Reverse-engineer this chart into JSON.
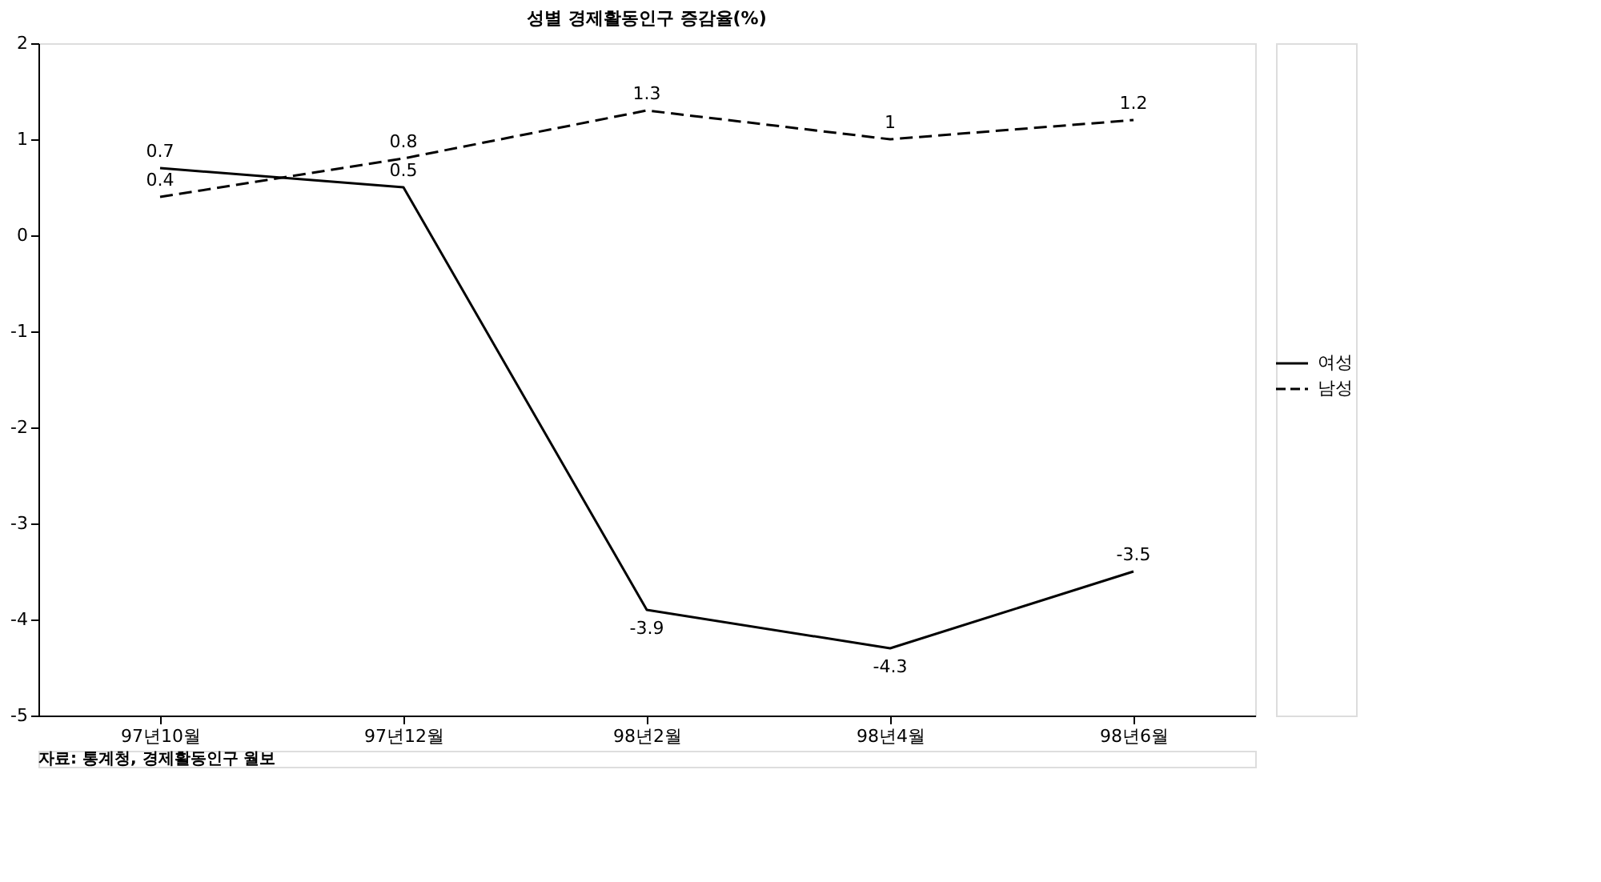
{
  "chart_data": {
    "type": "line",
    "title": "성별 경제활동인구 증감율(%)",
    "categories": [
      "97년10월",
      "97년12월",
      "98년2월",
      "98년4월",
      "98년6월"
    ],
    "series": [
      {
        "name": "여성",
        "color": "#000000",
        "line_style": "solid",
        "values": [
          0.7,
          0.5,
          -3.9,
          -4.3,
          -3.5
        ]
      },
      {
        "name": "남성",
        "color": "#000000",
        "line_style": "dashed",
        "values": [
          0.4,
          0.8,
          1.3,
          1,
          1.2
        ]
      }
    ],
    "ylim": [
      -5,
      2
    ],
    "yticks": [
      -5,
      -4,
      -3,
      -2,
      -1,
      0,
      1,
      2
    ],
    "data_labels": true,
    "grid": false,
    "legend": "right",
    "marker": "none",
    "annotations": [
      "자료: 통계청, 경제활동인구 월보"
    ]
  }
}
